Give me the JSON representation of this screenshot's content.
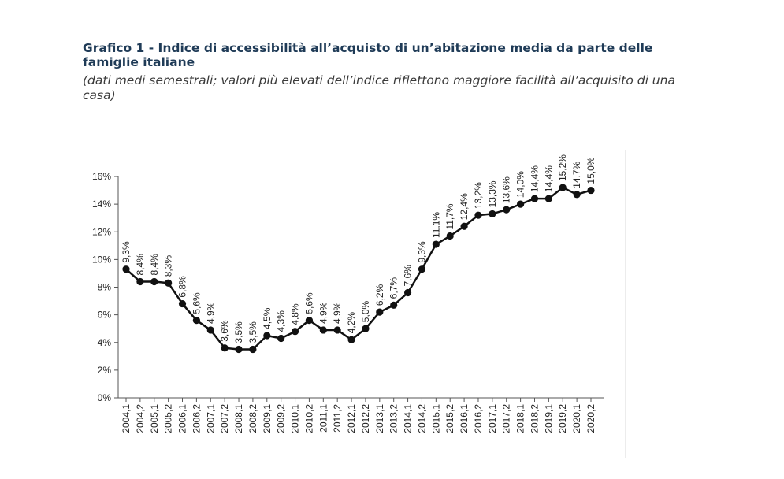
{
  "title": "Grafico 1 - Indice di accessibilità all’acquisto di un’abitazione media da parte delle famiglie italiane",
  "subtitle": "(dati medi semestrali; valori più elevati dell’indice riflettono maggiore facilità all’acquisito di una casa)",
  "chart_data": {
    "type": "line",
    "title": "",
    "xlabel": "",
    "ylabel": "",
    "ylim": [
      0,
      16
    ],
    "y_ticks": [
      "0%",
      "2%",
      "4%",
      "6%",
      "8%",
      "10%",
      "12%",
      "14%",
      "16%"
    ],
    "grid": false,
    "line_color": "#111111",
    "marker": "circle",
    "categories": [
      "2004,1",
      "2004,2",
      "2005,1",
      "2005,2",
      "2006,1",
      "2006,2",
      "2007,1",
      "2007,2",
      "2008,1",
      "2008,2",
      "2009,1",
      "2009,2",
      "2010,1",
      "2010,2",
      "2011,1",
      "2011,2",
      "2012,1",
      "2012,2",
      "2013,1",
      "2013,2",
      "2014,1",
      "2014,2",
      "2015,1",
      "2015,2",
      "2016,1",
      "2016,2",
      "2017,1",
      "2017,2",
      "2018,1",
      "2018,2",
      "2019,1",
      "2019,2",
      "2020,1",
      "2020,2"
    ],
    "values": [
      9.3,
      8.4,
      8.4,
      8.3,
      6.8,
      5.6,
      4.9,
      3.6,
      3.5,
      3.5,
      4.5,
      4.3,
      4.8,
      5.6,
      4.9,
      4.9,
      4.2,
      5.0,
      6.2,
      6.7,
      7.6,
      9.3,
      11.1,
      11.7,
      12.4,
      13.2,
      13.3,
      13.6,
      14.0,
      14.4,
      14.4,
      15.2,
      14.7,
      15.0
    ],
    "data_labels": [
      "9,3%",
      "8,4%",
      "8,4%",
      "8,3%",
      "6,8%",
      "5,6%",
      "4,9%",
      "3,6%",
      "3,5%",
      "3,5%",
      "4,5%",
      "4,3%",
      "4,8%",
      "5,6%",
      "4,9%",
      "4,9%",
      "4,2%",
      "5,0%",
      "6,2%",
      "6,7%",
      "7,6%",
      "9,3%",
      "11,1%",
      "11,7%",
      "12,4%",
      "13,2%",
      "13,3%",
      "13,6%",
      "14,0%",
      "14,4%",
      "14,4%",
      "15,2%",
      "14,7%",
      "15,0%"
    ]
  }
}
